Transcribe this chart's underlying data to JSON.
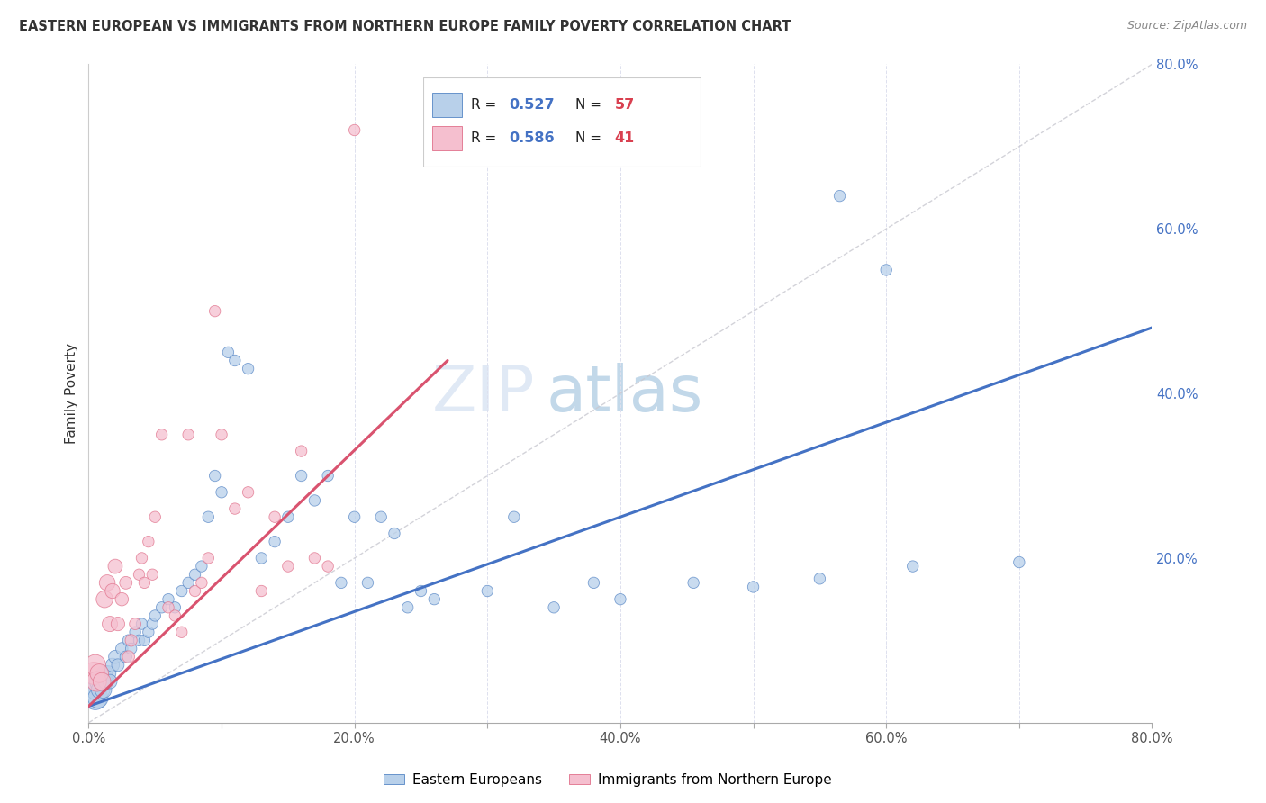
{
  "title": "EASTERN EUROPEAN VS IMMIGRANTS FROM NORTHERN EUROPE FAMILY POVERTY CORRELATION CHART",
  "source": "Source: ZipAtlas.com",
  "ylabel": "Family Poverty",
  "xlim": [
    0,
    0.8
  ],
  "ylim": [
    0,
    0.8
  ],
  "xtick_labels": [
    "0.0%",
    "",
    "20.0%",
    "",
    "40.0%",
    "",
    "60.0%",
    "",
    "80.0%"
  ],
  "xtick_vals": [
    0.0,
    0.1,
    0.2,
    0.3,
    0.4,
    0.5,
    0.6,
    0.7,
    0.8
  ],
  "right_ytick_labels": [
    "20.0%",
    "40.0%",
    "60.0%",
    "80.0%"
  ],
  "right_ytick_vals": [
    0.2,
    0.4,
    0.6,
    0.8
  ],
  "watermark_zip": "ZIP",
  "watermark_atlas": "atlas",
  "blue_R": "0.527",
  "blue_N": "57",
  "pink_R": "0.586",
  "pink_N": "41",
  "blue_fill": "#b8d0ea",
  "pink_fill": "#f5bfcf",
  "blue_edge": "#5585c5",
  "pink_edge": "#e0708a",
  "blue_line_color": "#4472c4",
  "pink_line_color": "#d9536f",
  "diag_line_color": "#c8c8d0",
  "legend_R_color": "#4472c4",
  "legend_N_color": "#d94050",
  "grid_color": "#dde0ee",
  "blue_line_x": [
    0.0,
    0.8
  ],
  "blue_line_y": [
    0.02,
    0.48
  ],
  "pink_line_x": [
    0.0,
    0.27
  ],
  "pink_line_y": [
    0.02,
    0.44
  ],
  "diag_line_x": [
    0.0,
    0.8
  ],
  "diag_line_y": [
    0.0,
    0.8
  ],
  "blue_x": [
    0.005,
    0.006,
    0.007,
    0.008,
    0.009,
    0.01,
    0.011,
    0.012,
    0.013,
    0.015,
    0.016,
    0.018,
    0.02,
    0.022,
    0.025,
    0.028,
    0.03,
    0.032,
    0.035,
    0.038,
    0.04,
    0.042,
    0.045,
    0.048,
    0.05,
    0.055,
    0.06,
    0.065,
    0.07,
    0.075,
    0.08,
    0.085,
    0.09,
    0.095,
    0.1,
    0.105,
    0.11,
    0.12,
    0.13,
    0.14,
    0.15,
    0.16,
    0.17,
    0.18,
    0.19,
    0.2,
    0.21,
    0.22,
    0.23,
    0.24,
    0.25,
    0.26,
    0.3,
    0.32,
    0.35,
    0.38,
    0.4
  ],
  "blue_y": [
    0.03,
    0.04,
    0.03,
    0.05,
    0.04,
    0.05,
    0.04,
    0.06,
    0.05,
    0.06,
    0.05,
    0.07,
    0.08,
    0.07,
    0.09,
    0.08,
    0.1,
    0.09,
    0.11,
    0.1,
    0.12,
    0.1,
    0.11,
    0.12,
    0.13,
    0.14,
    0.15,
    0.14,
    0.16,
    0.17,
    0.18,
    0.19,
    0.25,
    0.3,
    0.28,
    0.45,
    0.44,
    0.43,
    0.2,
    0.22,
    0.25,
    0.3,
    0.27,
    0.3,
    0.17,
    0.25,
    0.17,
    0.25,
    0.23,
    0.14,
    0.16,
    0.15,
    0.16,
    0.25,
    0.14,
    0.17,
    0.15
  ],
  "blue_s": [
    350,
    280,
    260,
    240,
    220,
    200,
    180,
    160,
    150,
    140,
    130,
    120,
    110,
    100,
    95,
    90,
    85,
    80,
    80,
    80,
    80,
    80,
    80,
    80,
    80,
    80,
    80,
    80,
    80,
    80,
    80,
    80,
    80,
    80,
    80,
    80,
    80,
    80,
    80,
    80,
    80,
    80,
    80,
    80,
    80,
    80,
    80,
    80,
    80,
    80,
    80,
    80,
    80,
    80,
    80,
    80,
    80
  ],
  "blue_extra_x": [
    0.455,
    0.5,
    0.55,
    0.565,
    0.6,
    0.62,
    0.7
  ],
  "blue_extra_y": [
    0.17,
    0.165,
    0.175,
    0.64,
    0.55,
    0.19,
    0.195
  ],
  "blue_extra_s": [
    80,
    80,
    80,
    80,
    80,
    80,
    80
  ],
  "pink_x": [
    0.004,
    0.005,
    0.006,
    0.008,
    0.01,
    0.012,
    0.014,
    0.016,
    0.018,
    0.02,
    0.022,
    0.025,
    0.028,
    0.03,
    0.032,
    0.035,
    0.038,
    0.04,
    0.042,
    0.045,
    0.048,
    0.05,
    0.055,
    0.06,
    0.065,
    0.07,
    0.075,
    0.08,
    0.085,
    0.09,
    0.095,
    0.1,
    0.11,
    0.12,
    0.13,
    0.14,
    0.15,
    0.16,
    0.17,
    0.18,
    0.2
  ],
  "pink_y": [
    0.06,
    0.07,
    0.05,
    0.06,
    0.05,
    0.15,
    0.17,
    0.12,
    0.16,
    0.19,
    0.12,
    0.15,
    0.17,
    0.08,
    0.1,
    0.12,
    0.18,
    0.2,
    0.17,
    0.22,
    0.18,
    0.25,
    0.35,
    0.14,
    0.13,
    0.11,
    0.35,
    0.16,
    0.17,
    0.2,
    0.5,
    0.35,
    0.26,
    0.28,
    0.16,
    0.25,
    0.19,
    0.33,
    0.2,
    0.19,
    0.72
  ],
  "pink_s": [
    320,
    280,
    250,
    220,
    200,
    180,
    160,
    150,
    140,
    130,
    120,
    110,
    100,
    95,
    90,
    85,
    80,
    80,
    80,
    80,
    80,
    80,
    80,
    80,
    80,
    80,
    80,
    80,
    80,
    80,
    80,
    80,
    80,
    80,
    80,
    80,
    80,
    80,
    80,
    80,
    80
  ]
}
